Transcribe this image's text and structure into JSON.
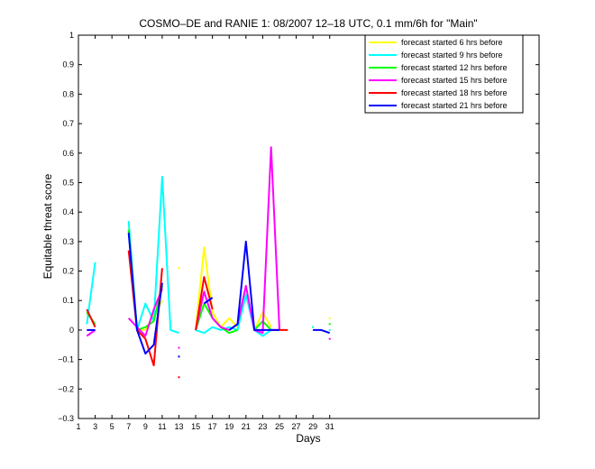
{
  "chart_data": {
    "type": "line",
    "title": "COSMO–DE and RANIE 1: 08/2007 12–18 UTC, 0.1 mm/6h for \"Main\"",
    "xlabel": "Days",
    "ylabel": "Equitable threat score",
    "xlim": [
      1,
      56
    ],
    "ylim": [
      -0.3,
      1
    ],
    "x_ticks": [
      1,
      3,
      5,
      7,
      9,
      11,
      13,
      15,
      17,
      19,
      21,
      23,
      25,
      27,
      29,
      31
    ],
    "y_ticks": [
      -0.3,
      -0.2,
      -0.1,
      0,
      0.1,
      0.2,
      0.3,
      0.4,
      0.5,
      0.6,
      0.7,
      0.8,
      0.9,
      1
    ],
    "y_tick_labels": [
      "−0.3",
      "−0.2",
      "−0.1",
      "0",
      "0.1",
      "0.2",
      "0.3",
      "0.4",
      "0.5",
      "0.6",
      "0.7",
      "0.8",
      "0.9",
      "1"
    ],
    "legend_position": "top-right",
    "grid": false,
    "series": [
      {
        "name": "forecast started 6 hrs before",
        "color": "#ffff00",
        "segments": [
          [
            [
              7,
              0.36
            ],
            [
              8,
              0.0
            ],
            [
              9,
              0.0
            ],
            [
              10,
              0.05
            ],
            [
              11,
              0.1
            ]
          ],
          [
            [
              15,
              0.0
            ],
            [
              16,
              0.28
            ],
            [
              17,
              0.06
            ],
            [
              18,
              0.01
            ],
            [
              19,
              0.04
            ],
            [
              20,
              0.01
            ]
          ],
          [
            [
              22,
              0.0
            ],
            [
              23,
              0.06
            ],
            [
              24,
              0.01
            ]
          ]
        ],
        "points": [
          [
            13,
            0.21
          ],
          [
            29,
            0.01
          ],
          [
            31,
            0.04
          ]
        ]
      },
      {
        "name": "forecast started 9 hrs before",
        "color": "#00ffff",
        "segments": [
          [
            [
              2,
              0.02
            ],
            [
              3,
              0.23
            ]
          ],
          [
            [
              7,
              0.37
            ],
            [
              8,
              0.0
            ],
            [
              9,
              0.09
            ],
            [
              10,
              0.03
            ],
            [
              11,
              0.52
            ],
            [
              12,
              0.0
            ],
            [
              13,
              -0.01
            ]
          ],
          [
            [
              15,
              0.0
            ],
            [
              16,
              -0.01
            ],
            [
              17,
              0.01
            ],
            [
              18,
              0.0
            ],
            [
              19,
              0.01
            ],
            [
              20,
              0.0
            ],
            [
              21,
              0.12
            ],
            [
              22,
              0.0
            ],
            [
              23,
              -0.02
            ],
            [
              24,
              0.0
            ]
          ]
        ],
        "points": [
          [
            29,
            0.01
          ],
          [
            31,
            0.0
          ]
        ]
      },
      {
        "name": "forecast started 12 hrs before",
        "color": "#00ff00",
        "segments": [
          [
            [
              2,
              0.06
            ],
            [
              3,
              0.02
            ]
          ],
          [
            [
              7,
              0.34
            ],
            [
              8,
              0.0
            ],
            [
              9,
              0.01
            ],
            [
              10,
              0.03
            ],
            [
              11,
              0.15
            ]
          ],
          [
            [
              15,
              0.0
            ],
            [
              16,
              0.09
            ],
            [
              17,
              0.04
            ],
            [
              18,
              0.01
            ],
            [
              19,
              -0.01
            ],
            [
              20,
              0.0
            ]
          ],
          [
            [
              22,
              0.0
            ],
            [
              23,
              0.03
            ],
            [
              24,
              0.0
            ]
          ]
        ],
        "points": [
          [
            31,
            0.02
          ]
        ]
      },
      {
        "name": "forecast started 15 hrs before",
        "color": "#ff00ff",
        "segments": [
          [
            [
              2,
              -0.02
            ],
            [
              3,
              0.0
            ]
          ],
          [
            [
              7,
              0.04
            ],
            [
              8,
              0.01
            ],
            [
              9,
              -0.02
            ],
            [
              10,
              0.07
            ],
            [
              11,
              0.14
            ]
          ],
          [
            [
              15,
              0.0
            ],
            [
              16,
              0.13
            ],
            [
              17,
              0.04
            ],
            [
              18,
              0.01
            ],
            [
              19,
              0.0
            ],
            [
              20,
              0.02
            ],
            [
              21,
              0.15
            ],
            [
              22,
              0.0
            ],
            [
              23,
              -0.01
            ],
            [
              24,
              0.62
            ],
            [
              25,
              0.0
            ]
          ]
        ],
        "points": [
          [
            13,
            -0.06
          ],
          [
            31,
            -0.03
          ]
        ]
      },
      {
        "name": "forecast started 18 hrs before",
        "color": "#ff0000",
        "segments": [
          [
            [
              2,
              0.07
            ],
            [
              3,
              0.01
            ]
          ],
          [
            [
              7,
              0.27
            ],
            [
              8,
              0.0
            ],
            [
              9,
              -0.03
            ],
            [
              10,
              -0.12
            ],
            [
              11,
              0.21
            ]
          ],
          [
            [
              15,
              0.0
            ],
            [
              16,
              0.18
            ],
            [
              17,
              0.07
            ]
          ],
          [
            [
              24,
              0.0
            ],
            [
              25,
              0.0
            ],
            [
              26,
              0.0
            ]
          ]
        ],
        "points": [
          [
            13,
            -0.16
          ]
        ]
      },
      {
        "name": "forecast started 21 hrs before",
        "color": "#0000ff",
        "segments": [
          [
            [
              2,
              0.0
            ],
            [
              3,
              0.0
            ]
          ],
          [
            [
              7,
              0.33
            ],
            [
              8,
              0.0
            ],
            [
              9,
              -0.08
            ],
            [
              10,
              -0.05
            ],
            [
              11,
              0.16
            ]
          ],
          [
            [
              16,
              0.09
            ],
            [
              17,
              0.11
            ]
          ],
          [
            [
              19,
              0.0
            ],
            [
              20,
              0.02
            ],
            [
              21,
              0.3
            ],
            [
              22,
              0.0
            ],
            [
              23,
              0.0
            ],
            [
              24,
              0.0
            ],
            [
              25,
              0.0
            ]
          ],
          [
            [
              29,
              0.0
            ],
            [
              30,
              0.0
            ],
            [
              31,
              -0.01
            ]
          ]
        ],
        "points": [
          [
            13,
            -0.09
          ]
        ]
      }
    ]
  }
}
